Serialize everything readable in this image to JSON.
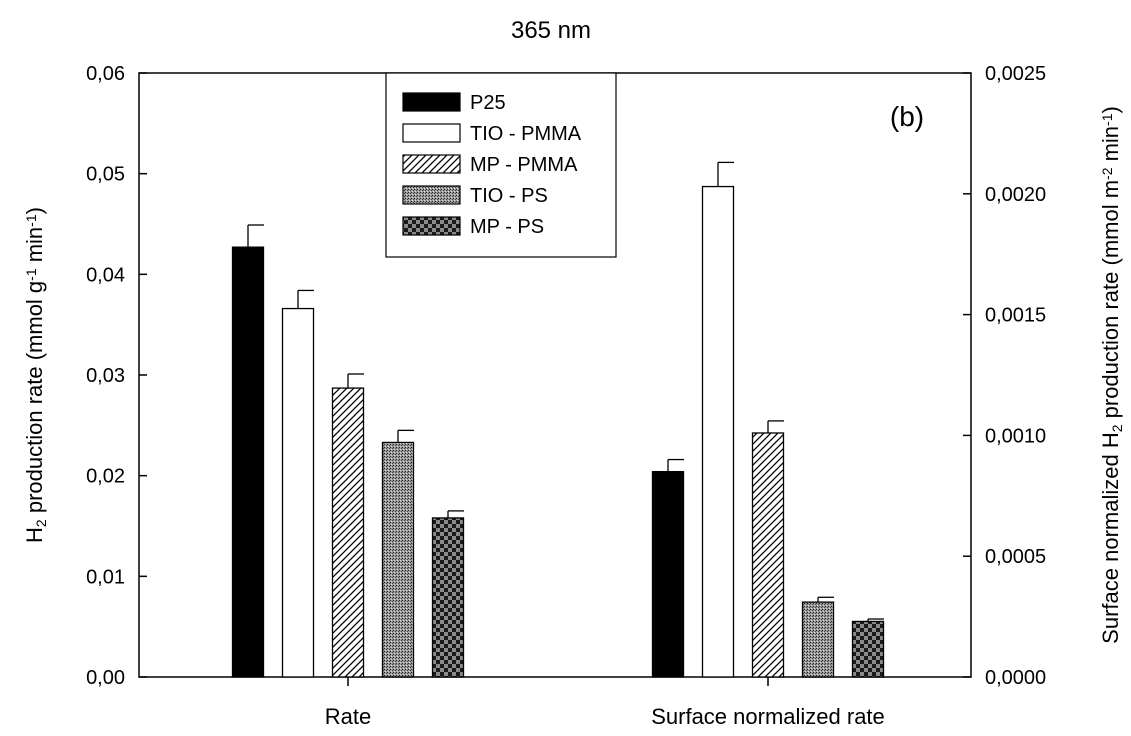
{
  "chart_data": {
    "type": "bar",
    "title": "365 nm",
    "panel_label": "(b)",
    "categories": [
      "Rate",
      "Surface normalized rate"
    ],
    "left_axis": {
      "label_parts": [
        "H",
        "2",
        " production rate (mmol g",
        "-1",
        " min",
        "-1",
        ")"
      ],
      "ylim": [
        0,
        0.06
      ],
      "ticks": [
        0,
        0.01,
        0.02,
        0.03,
        0.04,
        0.05,
        0.06
      ],
      "tick_labels": [
        "0,00",
        "0,01",
        "0,02",
        "0,03",
        "0,04",
        "0,05",
        "0,06"
      ]
    },
    "right_axis": {
      "label_parts": [
        "Surface normalized H",
        "2",
        " production rate (mmol m",
        "-2",
        " min",
        "-1",
        ")"
      ],
      "ylim": [
        0,
        0.0025
      ],
      "ticks": [
        0,
        0.0005,
        0.001,
        0.0015,
        0.002,
        0.0025
      ],
      "tick_labels": [
        "0,0000",
        "0,0005",
        "0,0010",
        "0,0015",
        "0,0020",
        "0,0025"
      ]
    },
    "legend_position": "top-center",
    "series": [
      {
        "name": "P25",
        "pattern": "solid-black",
        "values": [
          0.0427,
          0.00085
        ],
        "errors": [
          0.0022,
          5e-05
        ]
      },
      {
        "name": "TIO - PMMA",
        "pattern": "white",
        "values": [
          0.0366,
          0.00203
        ],
        "errors": [
          0.0018,
          0.0001
        ]
      },
      {
        "name": "MP - PMMA",
        "pattern": "diagonal-hatch",
        "values": [
          0.0287,
          0.00101
        ],
        "errors": [
          0.0014,
          5e-05
        ]
      },
      {
        "name": "TIO - PS",
        "pattern": "fine-crosshatch",
        "values": [
          0.0233,
          0.00031
        ],
        "errors": [
          0.0012,
          2e-05
        ]
      },
      {
        "name": "MP - PS",
        "pattern": "checkerboard",
        "values": [
          0.0158,
          0.00023
        ],
        "errors": [
          0.0007,
          1e-05
        ]
      }
    ],
    "series_axis_by_category": [
      "left",
      "right"
    ],
    "grid": false
  }
}
